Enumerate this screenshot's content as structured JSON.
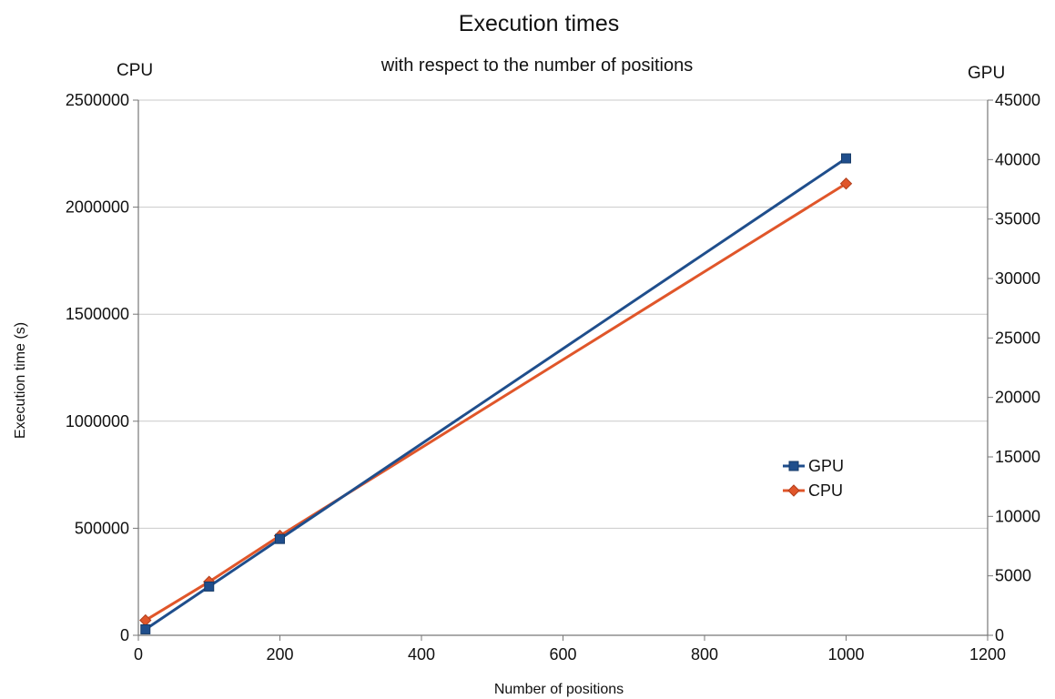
{
  "colors": {
    "gpu": "#1f4e8c",
    "cpu": "#e0562a",
    "grid": "#c9c9c9",
    "axis": "#777777"
  },
  "chart_data": {
    "type": "line",
    "title": "Execution times",
    "subtitle": "with respect to the number of positions",
    "left_axis_label": "CPU",
    "right_axis_label": "GPU",
    "xlabel": "Number of positions",
    "ylabel": "Execution time (s)",
    "x_ticks": [
      "0",
      "200",
      "400",
      "600",
      "800",
      "1000",
      "1200"
    ],
    "y_left_ticks": [
      "0",
      "500000",
      "1000000",
      "1500000",
      "2000000",
      "2500000"
    ],
    "y_right_ticks": [
      "0",
      "5000",
      "10000",
      "15000",
      "20000",
      "25000",
      "30000",
      "35000",
      "40000",
      "45000"
    ],
    "xlim": [
      0,
      1200
    ],
    "ylim_left": [
      0,
      2500000
    ],
    "ylim_right": [
      0,
      45000
    ],
    "grid": true,
    "legend_position": "right",
    "series": [
      {
        "name": "GPU",
        "axis": "right",
        "marker": "square",
        "color": "#1f4e8c",
        "points": [
          {
            "x": 10,
            "y": 500
          },
          {
            "x": 100,
            "y": 4100
          },
          {
            "x": 200,
            "y": 8100
          },
          {
            "x": 1000,
            "y": 40100
          }
        ]
      },
      {
        "name": "CPU",
        "axis": "left",
        "marker": "diamond",
        "color": "#e0562a",
        "points": [
          {
            "x": 10,
            "y": 70000
          },
          {
            "x": 100,
            "y": 250000
          },
          {
            "x": 200,
            "y": 465000
          },
          {
            "x": 1000,
            "y": 2110000
          }
        ]
      }
    ]
  }
}
